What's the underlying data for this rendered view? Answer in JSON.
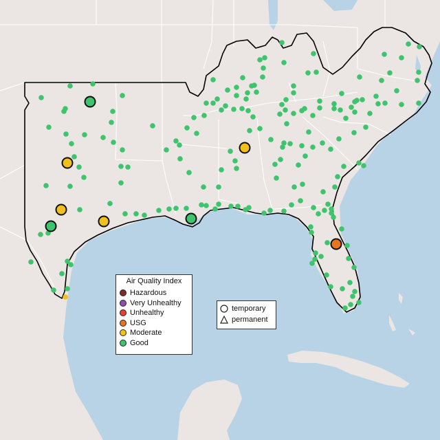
{
  "legend": {
    "title": "Air Quality Index",
    "categories": [
      {
        "label": "Hazardous",
        "color": "#7e2c26"
      },
      {
        "label": "Very Unhealthy",
        "color": "#8e4db0"
      },
      {
        "label": "Unhealthy",
        "color": "#e64132"
      },
      {
        "label": "USG",
        "color": "#e8741e"
      },
      {
        "label": "Moderate",
        "color": "#f2c01b"
      },
      {
        "label": "Good",
        "color": "#3ec46d"
      }
    ]
  },
  "type_legend": {
    "temporary": {
      "label": "temporary",
      "icon": "circle-icon"
    },
    "permanent": {
      "label": "permanent",
      "icon": "triangle-icon"
    }
  },
  "colors": {
    "ocean": "#b9d3e6",
    "land": "#ebe6e3",
    "state_border": "#ffffff",
    "region_outline": "#000000"
  },
  "monitors": {
    "good_small": [
      [
        60,
        142
      ],
      [
        102,
        125
      ],
      [
        135,
        122
      ],
      [
        95,
        158
      ],
      [
        93,
        162
      ],
      [
        164,
        162
      ],
      [
        178,
        139
      ],
      [
        71,
        185
      ],
      [
        96,
        195
      ],
      [
        123,
        196
      ],
      [
        162,
        178
      ],
      [
        222,
        183
      ],
      [
        178,
        218
      ],
      [
        176,
        242
      ],
      [
        186,
        243
      ],
      [
        102,
        271
      ],
      [
        122,
        258
      ],
      [
        160,
        296
      ],
      [
        182,
        311
      ],
      [
        198,
        311
      ],
      [
        210,
        313
      ],
      [
        231,
        306
      ],
      [
        246,
        304
      ],
      [
        256,
        303
      ],
      [
        271,
        303
      ],
      [
        293,
        298
      ],
      [
        300,
        299
      ],
      [
        318,
        297
      ],
      [
        313,
        304
      ],
      [
        336,
        300
      ],
      [
        346,
        300
      ],
      [
        357,
        305
      ],
      [
        362,
        302
      ],
      [
        384,
        310
      ],
      [
        393,
        306
      ],
      [
        413,
        307
      ],
      [
        424,
        298
      ],
      [
        437,
        292
      ],
      [
        456,
        302
      ],
      [
        463,
        311
      ],
      [
        472,
        306
      ],
      [
        477,
        297
      ],
      [
        482,
        304
      ],
      [
        482,
        310
      ],
      [
        485,
        316
      ],
      [
        452,
        330
      ],
      [
        453,
        338
      ],
      [
        476,
        353
      ],
      [
        459,
        368
      ],
      [
        458,
        377
      ],
      [
        467,
        373
      ],
      [
        454,
        383
      ],
      [
        475,
        400
      ],
      [
        505,
        357
      ],
      [
        507,
        376
      ],
      [
        515,
        389
      ],
      [
        509,
        411
      ],
      [
        516,
        424
      ],
      [
        513,
        431
      ],
      [
        510,
        443
      ],
      [
        522,
        440
      ],
      [
        502,
        448
      ],
      [
        481,
        417
      ],
      [
        498,
        420
      ],
      [
        497,
        333
      ],
      [
        470,
        279
      ],
      [
        487,
        272
      ],
      [
        491,
        257
      ],
      [
        522,
        237
      ],
      [
        529,
        241
      ],
      [
        500,
        242
      ],
      [
        481,
        217
      ],
      [
        469,
        208
      ],
      [
        493,
        202
      ],
      [
        515,
        193
      ],
      [
        532,
        185
      ],
      [
        538,
        165
      ],
      [
        550,
        151
      ],
      [
        560,
        150
      ],
      [
        547,
        140
      ],
      [
        555,
        117
      ],
      [
        567,
        106
      ],
      [
        577,
        132
      ],
      [
        584,
        152
      ],
      [
        609,
        150
      ],
      [
        607,
        117
      ],
      [
        609,
        105
      ],
      [
        594,
        64
      ],
      [
        610,
        68
      ],
      [
        559,
        79
      ],
      [
        584,
        84
      ],
      [
        523,
        112
      ],
      [
        497,
        136
      ],
      [
        495,
        160
      ],
      [
        503,
        172
      ],
      [
        511,
        156
      ],
      [
        516,
        148
      ],
      [
        519,
        146
      ],
      [
        516,
        163
      ],
      [
        527,
        145
      ],
      [
        486,
        151
      ],
      [
        486,
        158
      ],
      [
        465,
        147
      ],
      [
        465,
        157
      ],
      [
        455,
        168
      ],
      [
        443,
        158
      ],
      [
        439,
        161
      ],
      [
        427,
        165
      ],
      [
        417,
        180
      ],
      [
        413,
        208
      ],
      [
        439,
        212
      ],
      [
        434,
        240
      ],
      [
        444,
        227
      ],
      [
        449,
        192
      ],
      [
        455,
        214
      ],
      [
        440,
        268
      ],
      [
        428,
        272
      ],
      [
        402,
        259
      ],
      [
        400,
        239
      ],
      [
        408,
        232
      ],
      [
        411,
        214
      ],
      [
        422,
        209
      ],
      [
        394,
        203
      ],
      [
        378,
        187
      ],
      [
        368,
        170
      ],
      [
        361,
        161
      ],
      [
        363,
        190
      ],
      [
        335,
        220
      ],
      [
        342,
        234
      ],
      [
        344,
        245
      ],
      [
        322,
        247
      ],
      [
        318,
        272
      ],
      [
        296,
        272
      ],
      [
        275,
        251
      ],
      [
        262,
        231
      ],
      [
        261,
        211
      ],
      [
        286,
        194
      ],
      [
        272,
        186
      ],
      [
        282,
        171
      ],
      [
        297,
        168
      ],
      [
        300,
        150
      ],
      [
        316,
        144
      ],
      [
        331,
        131
      ],
      [
        344,
        127
      ],
      [
        344,
        139
      ],
      [
        352,
        158
      ],
      [
        366,
        125
      ],
      [
        370,
        124
      ],
      [
        382,
        112
      ],
      [
        383,
        99
      ],
      [
        378,
        87
      ],
      [
        385,
        84
      ],
      [
        410,
        62
      ],
      [
        413,
        91
      ],
      [
        456,
        78
      ],
      [
        448,
        106
      ],
      [
        460,
        105
      ],
      [
        427,
        125
      ],
      [
        427,
        135
      ],
      [
        416,
        145
      ],
      [
        415,
        160
      ],
      [
        410,
        152
      ],
      [
        407,
        166
      ],
      [
        373,
        134
      ],
      [
        358,
        144
      ],
      [
        340,
        159
      ],
      [
        328,
        154
      ],
      [
        310,
        116
      ],
      [
        310,
        150
      ],
      [
        353,
        113
      ],
      [
        360,
        135
      ],
      [
        322,
        160
      ],
      [
        256,
        205
      ],
      [
        242,
        218
      ],
      [
        165,
        207
      ],
      [
        150,
        200
      ],
      [
        108,
        228
      ],
      [
        104,
        209
      ],
      [
        115,
        243
      ],
      [
        176,
        266
      ],
      [
        116,
        305
      ],
      [
        70,
        339
      ],
      [
        59,
        341
      ],
      [
        67,
        270
      ],
      [
        45,
        381
      ],
      [
        78,
        422
      ],
      [
        98,
        380
      ],
      [
        103,
        385
      ],
      [
        90,
        398
      ],
      [
        98,
        420
      ]
    ],
    "good_large": [
      [
        131,
        148
      ],
      [
        74,
        329
      ],
      [
        278,
        318
      ]
    ],
    "moderate_small": [
      [
        95,
        432
      ]
    ],
    "moderate_large": [
      [
        98,
        237
      ],
      [
        89,
        305
      ],
      [
        151,
        322
      ],
      [
        356,
        215
      ]
    ],
    "usg_large": [
      [
        489,
        355
      ]
    ]
  }
}
